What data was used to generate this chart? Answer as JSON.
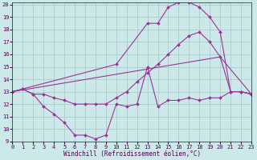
{
  "background_color": "#cce8e8",
  "grid_color": "#aacccc",
  "line_color": "#993399",
  "xlabel": "Windchill (Refroidissement éolien,°C)",
  "xlim": [
    0,
    23
  ],
  "ylim": [
    9,
    20.2
  ],
  "yticks": [
    9,
    10,
    11,
    12,
    13,
    14,
    15,
    16,
    17,
    18,
    19,
    20
  ],
  "xticks": [
    0,
    1,
    2,
    3,
    4,
    5,
    6,
    7,
    8,
    9,
    10,
    11,
    12,
    13,
    14,
    15,
    16,
    17,
    18,
    19,
    20,
    21,
    22,
    23
  ],
  "series": [
    {
      "x": [
        0,
        1,
        2,
        3,
        4,
        5,
        6,
        7,
        8,
        9,
        10,
        11,
        12,
        13,
        14,
        15,
        16,
        17,
        18,
        19,
        20,
        21,
        22,
        23
      ],
      "y": [
        13.0,
        13.2,
        12.8,
        11.8,
        11.2,
        10.5,
        9.5,
        9.5,
        9.2,
        9.5,
        12.0,
        11.8,
        12.0,
        15.0,
        11.8,
        12.3,
        12.3,
        12.5,
        12.3,
        12.5,
        12.5,
        13.0,
        13.0,
        12.8
      ],
      "marker": true
    },
    {
      "x": [
        0,
        1,
        2,
        3,
        4,
        5,
        6,
        7,
        8,
        9,
        10,
        11,
        12,
        13,
        14,
        15,
        16,
        17,
        18,
        19,
        20,
        21,
        22,
        23
      ],
      "y": [
        13.0,
        13.2,
        12.8,
        12.8,
        12.5,
        12.3,
        12.0,
        12.0,
        12.0,
        12.0,
        12.5,
        13.0,
        13.8,
        14.5,
        15.2,
        16.0,
        16.8,
        17.5,
        17.8,
        17.0,
        15.8,
        13.0,
        13.0,
        12.8
      ],
      "marker": true
    },
    {
      "x": [
        0,
        10,
        13,
        14,
        15,
        16,
        17,
        18,
        19,
        20,
        21,
        22,
        23
      ],
      "y": [
        13.0,
        15.2,
        18.5,
        18.5,
        19.8,
        20.2,
        20.2,
        19.8,
        19.0,
        17.8,
        13.0,
        13.0,
        12.8
      ],
      "marker": true
    },
    {
      "x": [
        0,
        20,
        23
      ],
      "y": [
        13.0,
        15.8,
        12.8
      ],
      "marker": false
    }
  ]
}
